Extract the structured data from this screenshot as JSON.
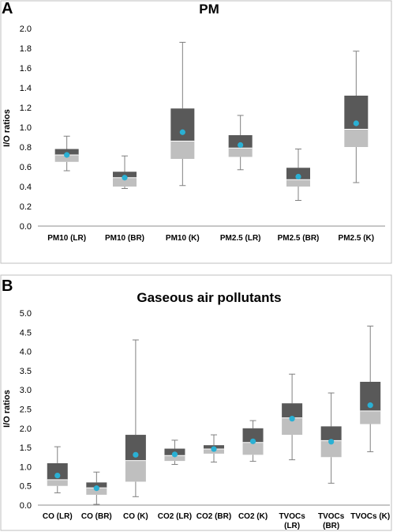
{
  "colors": {
    "box_upper": "#595959",
    "box_lower": "#bfbfbf",
    "whisker": "#808080",
    "mean_marker": "#2ab0d4"
  },
  "chart_data": [
    {
      "type": "boxplot",
      "panel": "A",
      "title": "PM",
      "ylabel": "I/O ratios",
      "xlabel": "",
      "ylim": [
        0,
        2.0
      ],
      "ytick_step": 0.2,
      "ytick_labels": [
        "0.0",
        "0.2",
        "0.4",
        "0.6",
        "0.8",
        "1.0",
        "1.2",
        "1.4",
        "1.6",
        "1.8",
        "2.0"
      ],
      "grid": false,
      "categories": [
        [
          "PM10 (LR)"
        ],
        [
          "PM10 (BR)"
        ],
        [
          "PM10 (K)"
        ],
        [
          "PM2.5 (LR)"
        ],
        [
          "PM2.5 (BR)"
        ],
        [
          "PM2.5 (K)"
        ]
      ],
      "boxes": [
        {
          "min": 0.56,
          "q1": 0.65,
          "median": 0.72,
          "q3": 0.78,
          "max": 0.91,
          "mean": 0.72
        },
        {
          "min": 0.38,
          "q1": 0.4,
          "median": 0.49,
          "q3": 0.55,
          "max": 0.71,
          "mean": 0.49
        },
        {
          "min": 0.41,
          "q1": 0.68,
          "median": 0.86,
          "q3": 1.19,
          "max": 1.86,
          "mean": 0.95
        },
        {
          "min": 0.57,
          "q1": 0.7,
          "median": 0.79,
          "q3": 0.92,
          "max": 1.12,
          "mean": 0.82
        },
        {
          "min": 0.26,
          "q1": 0.4,
          "median": 0.47,
          "q3": 0.59,
          "max": 0.78,
          "mean": 0.5
        },
        {
          "min": 0.44,
          "q1": 0.8,
          "median": 0.98,
          "q3": 1.32,
          "max": 1.77,
          "mean": 1.04
        }
      ]
    },
    {
      "type": "boxplot",
      "panel": "B",
      "title": "Gaseous air pollutants",
      "ylabel": "I/O ratios",
      "xlabel": "",
      "ylim": [
        0,
        5.0
      ],
      "ytick_step": 0.5,
      "ytick_labels": [
        "0.0",
        "0.5",
        "1.0",
        "1.5",
        "2.0",
        "2.5",
        "3.0",
        "3.5",
        "4.0",
        "4.5",
        "5.0"
      ],
      "grid": false,
      "categories": [
        [
          "CO (LR)"
        ],
        [
          "CO (BR)"
        ],
        [
          "CO (K)"
        ],
        [
          "CO2 (LR)"
        ],
        [
          "CO2 (BR)"
        ],
        [
          "CO2 (K)"
        ],
        [
          "TVOCs",
          "(LR)"
        ],
        [
          "TVOCs",
          "(BR)"
        ],
        [
          "TVOCs (K)"
        ]
      ],
      "boxes": [
        {
          "min": 0.32,
          "q1": 0.5,
          "median": 0.66,
          "q3": 1.09,
          "max": 1.52,
          "mean": 0.77
        },
        {
          "min": 0.02,
          "q1": 0.27,
          "median": 0.45,
          "q3": 0.59,
          "max": 0.86,
          "mean": 0.44
        },
        {
          "min": 0.22,
          "q1": 0.61,
          "median": 1.16,
          "q3": 1.83,
          "max": 4.3,
          "mean": 1.31
        },
        {
          "min": 1.06,
          "q1": 1.15,
          "median": 1.29,
          "q3": 1.47,
          "max": 1.69,
          "mean": 1.32
        },
        {
          "min": 1.12,
          "q1": 1.34,
          "median": 1.46,
          "q3": 1.56,
          "max": 1.83,
          "mean": 1.46
        },
        {
          "min": 1.14,
          "q1": 1.31,
          "median": 1.63,
          "q3": 2.0,
          "max": 2.2,
          "mean": 1.66
        },
        {
          "min": 1.18,
          "q1": 1.83,
          "median": 2.27,
          "q3": 2.65,
          "max": 3.41,
          "mean": 2.25
        },
        {
          "min": 0.57,
          "q1": 1.25,
          "median": 1.68,
          "q3": 2.05,
          "max": 2.92,
          "mean": 1.65
        },
        {
          "min": 1.39,
          "q1": 2.11,
          "median": 2.45,
          "q3": 3.21,
          "max": 4.66,
          "mean": 2.6
        }
      ]
    }
  ]
}
